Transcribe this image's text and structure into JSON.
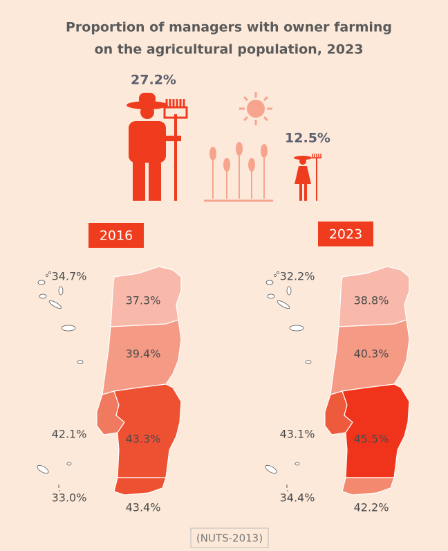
{
  "header": {
    "title_lines": [
      "Proportion of managers with owner farming",
      "on the agricultural population, 2023"
    ]
  },
  "figures": {
    "men": "27.2%",
    "women": "12.5%"
  },
  "maps": [
    {
      "year": "2016",
      "regions": {
        "azores": "34.7%",
        "norte": "37.3%",
        "centro": "39.4%",
        "lisboa": "42.1%",
        "alentejo": "43.3%",
        "madeira": "33.0%",
        "algarve": "43.4%"
      }
    },
    {
      "year": "2023",
      "regions": {
        "azores": "32.2%",
        "norte": "38.8%",
        "centro": "40.3%",
        "lisboa": "43.1%",
        "alentejo": "45.5%",
        "madeira": "34.4%",
        "algarve": "42.2%"
      }
    }
  ],
  "footer": {
    "note": "(NUTS-2013)"
  }
}
